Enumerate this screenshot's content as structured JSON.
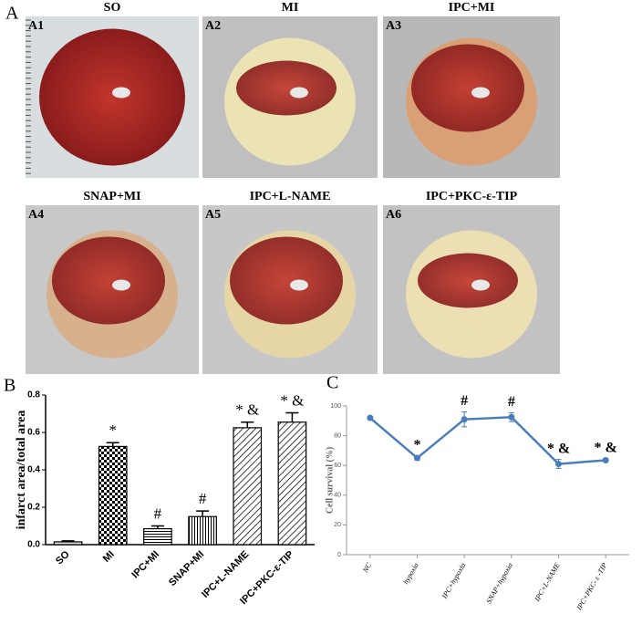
{
  "panel_a": {
    "label": "A",
    "images": [
      {
        "tag": "A1",
        "title": "SO"
      },
      {
        "tag": "A2",
        "title": "MI"
      },
      {
        "tag": "A3",
        "title": "IPC+MI"
      },
      {
        "tag": "A4",
        "title": "SNAP+MI"
      },
      {
        "tag": "A5",
        "title": "IPC+L-NAME"
      },
      {
        "tag": "A6",
        "title": "IPC+PKC-ε-TIP"
      }
    ]
  },
  "chart_data": [
    {
      "type": "bar",
      "panel_label": "B",
      "y_label": "infarct area/total area",
      "categories": [
        "SO",
        "MI",
        "IPC+MI",
        "SNAP+MI",
        "IPC+L-NAME",
        "IPC+PKC-ε-TIP"
      ],
      "values": [
        0.015,
        0.525,
        0.085,
        0.15,
        0.625,
        0.655
      ],
      "errors": [
        0.005,
        0.02,
        0.015,
        0.03,
        0.03,
        0.05
      ],
      "annotations": [
        null,
        "*",
        "#",
        "#",
        "* &",
        "* &"
      ],
      "fills": [
        "plain",
        "checker",
        "hlines",
        "vlines",
        "diag",
        "diag"
      ],
      "color": "#000000",
      "ylim": [
        0,
        0.8
      ],
      "yticks": [
        {
          "value": 0,
          "label": "0.0"
        },
        0.2,
        0.4,
        0.6,
        0.8
      ]
    },
    {
      "type": "line",
      "panel_label": "C",
      "y_label": "Cell survival (%)",
      "categories": [
        "NC",
        "hypoxia",
        "IPC+hypoxia",
        "SNAP+hypoxia",
        "IPC+L-NAME",
        "IPC+PKC- ε -TIP"
      ],
      "values": [
        92,
        65,
        91,
        92.5,
        61,
        63.5
      ],
      "errors": [
        1,
        1.5,
        5,
        3,
        3,
        1
      ],
      "annotations": [
        null,
        "*",
        "#",
        "#",
        "* &",
        "* &"
      ],
      "color": "#4a7ebb",
      "ylim": [
        0,
        100
      ],
      "yticks": [
        0,
        20,
        40,
        60,
        80,
        100
      ]
    }
  ]
}
